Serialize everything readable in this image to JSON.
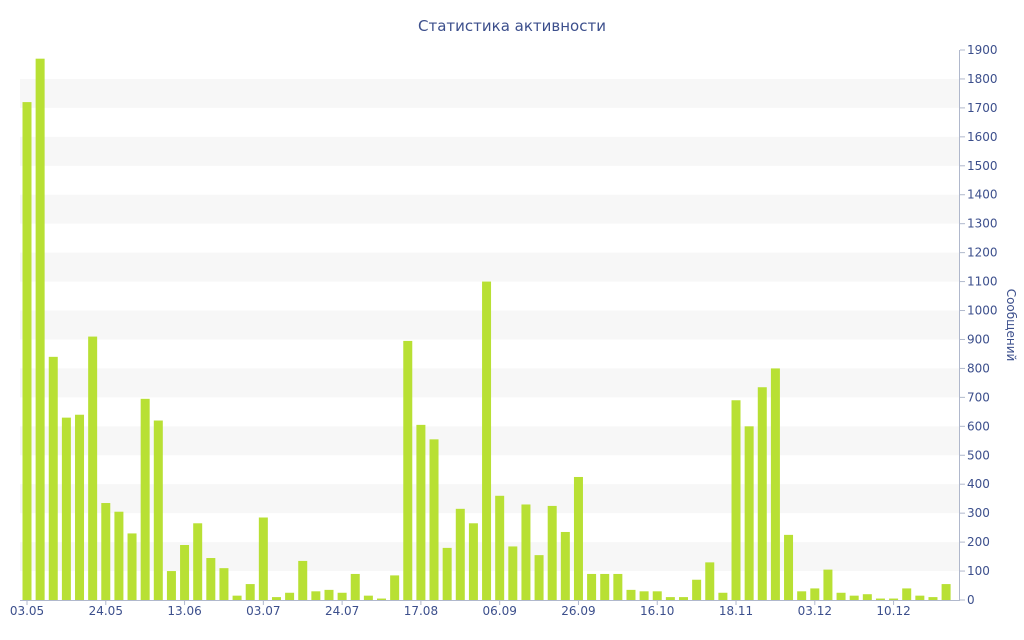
{
  "chart_data": {
    "type": "bar",
    "title": "Статистика активности",
    "xlabel": "",
    "ylabel": "Сообщений",
    "y_axis_side": "right",
    "ylim": [
      0,
      1900
    ],
    "y_ticks": [
      0,
      100,
      200,
      300,
      400,
      500,
      600,
      700,
      800,
      900,
      1000,
      1100,
      1200,
      1300,
      1400,
      1500,
      1600,
      1700,
      1800,
      1900
    ],
    "grid": "horizontal alternating bands",
    "bar_color": "#b8e034",
    "text_color": "#3c4f8c",
    "band_color": "#f7f7f7",
    "x_tick_labels": [
      {
        "index": 0,
        "label": "03.05"
      },
      {
        "index": 6,
        "label": "24.05"
      },
      {
        "index": 12,
        "label": "13.06"
      },
      {
        "index": 18,
        "label": "03.07"
      },
      {
        "index": 24,
        "label": "24.07"
      },
      {
        "index": 30,
        "label": "17.08"
      },
      {
        "index": 36,
        "label": "06.09"
      },
      {
        "index": 42,
        "label": "26.09"
      },
      {
        "index": 48,
        "label": "16.10"
      },
      {
        "index": 54,
        "label": "18.11"
      },
      {
        "index": 60,
        "label": "03.12"
      },
      {
        "index": 66,
        "label": "10.12"
      }
    ],
    "values": [
      1720,
      1870,
      840,
      630,
      640,
      910,
      335,
      305,
      230,
      695,
      620,
      100,
      190,
      265,
      145,
      110,
      15,
      55,
      285,
      10,
      25,
      135,
      30,
      35,
      25,
      90,
      15,
      5,
      85,
      895,
      605,
      555,
      180,
      315,
      265,
      1100,
      360,
      185,
      330,
      155,
      325,
      235,
      425,
      90,
      90,
      90,
      35,
      30,
      30,
      10,
      10,
      70,
      130,
      25,
      690,
      600,
      735,
      800,
      225,
      30,
      40,
      105,
      25,
      15,
      20,
      5,
      5,
      40,
      15,
      10,
      55
    ]
  }
}
